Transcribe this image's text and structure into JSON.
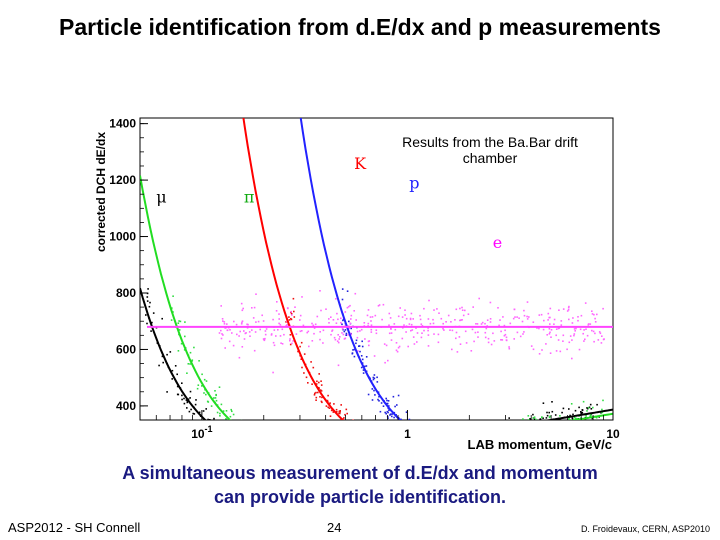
{
  "slide": {
    "title": "Particle identification from d.E/dx and p measurements",
    "caption_line1": "A simultaneous measurement of d.E/dx and momentum",
    "caption_line2": "can provide particle identification.",
    "footer_left": "ASP2012 - SH Connell",
    "page_number": "24",
    "footer_right": "D. Froidevaux, CERN, ASP2010"
  },
  "chart_data": {
    "type": "scatter",
    "ylabel": "corrected DCH dE/dx",
    "xlabel": "LAB momentum, GeV/c",
    "x_scale": "log",
    "xlim": [
      0.05,
      10
    ],
    "ylim": [
      350,
      1420
    ],
    "y_ticks": [
      400,
      600,
      800,
      1000,
      1200,
      1400
    ],
    "x_ticks": [
      {
        "value": 0.1,
        "label": "10",
        "sup": "-1"
      },
      {
        "value": 1,
        "label": "1",
        "sup": ""
      },
      {
        "value": 10,
        "label": "10",
        "sup": ""
      }
    ],
    "annotation": "Results from the Ba.Bar drift chamber",
    "cut_line": {
      "y": 680,
      "color": "#ff44ff"
    },
    "series": [
      {
        "name": "μ",
        "color": "#000000",
        "point_color": "#000000",
        "mass": 0.1057,
        "label_x": 0.06,
        "label_y": 1120
      },
      {
        "name": "π",
        "color": "#22dd22",
        "point_color": "#33dd44",
        "mass": 0.1396,
        "label_x": 0.16,
        "label_y": 1120
      },
      {
        "name": "K",
        "color": "#ff0000",
        "point_color": "#ee1111",
        "mass": 0.4937,
        "label_x": 0.55,
        "label_y": 1240
      },
      {
        "name": "p",
        "color": "#2222ff",
        "point_color": "#2222dd",
        "mass": 0.9383,
        "label_x": 1.02,
        "label_y": 1170
      },
      {
        "name": "e",
        "color": "#ff00ff",
        "point_color": "#ff66ff",
        "mass": 0.000511,
        "label_x": 2.6,
        "label_y": 960
      }
    ]
  }
}
